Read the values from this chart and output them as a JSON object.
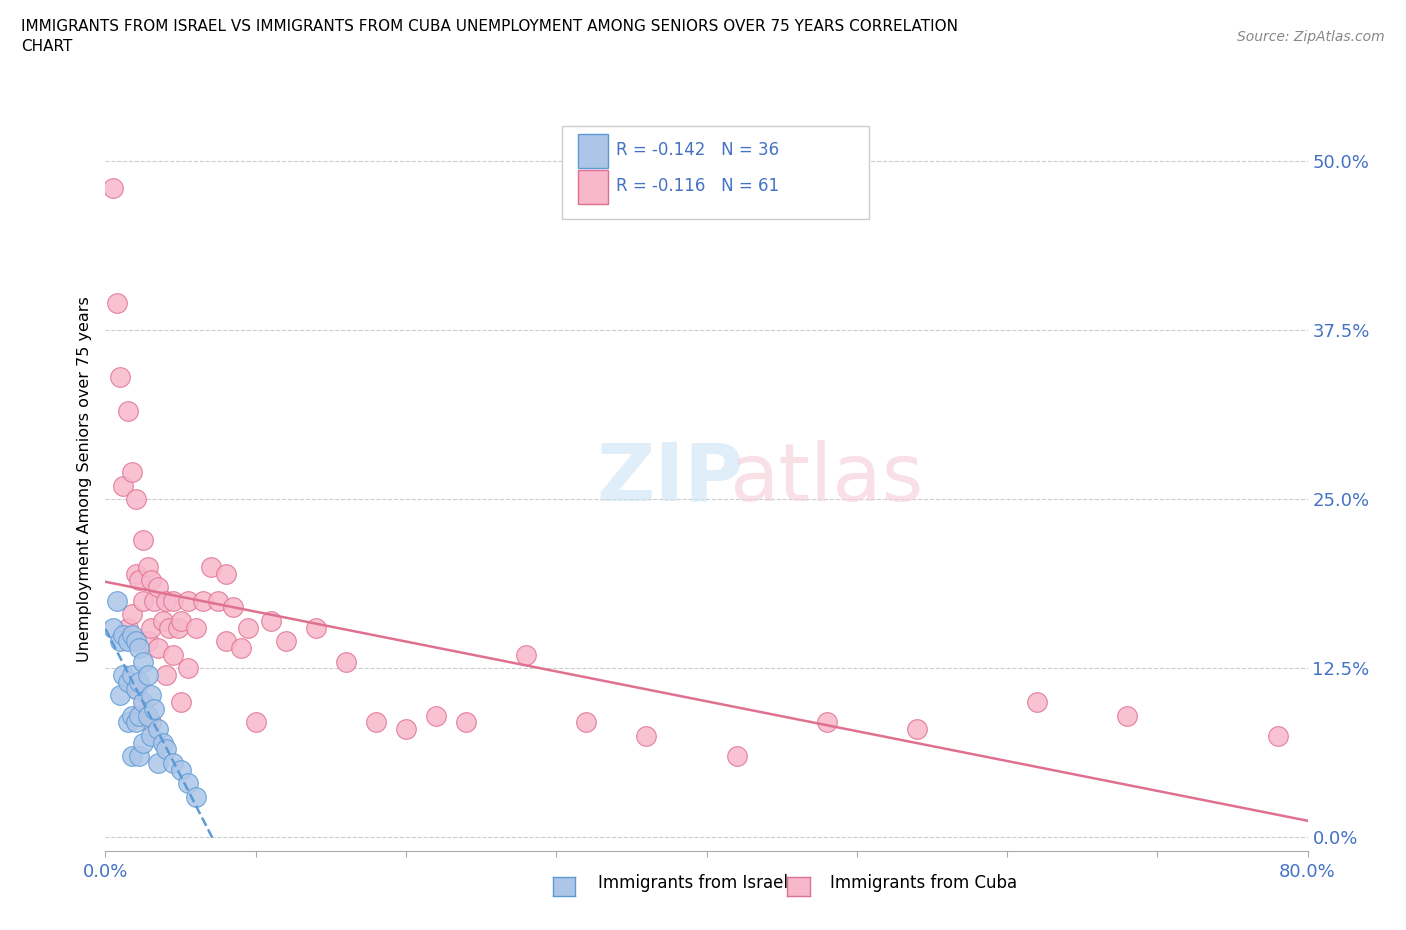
{
  "title_line1": "IMMIGRANTS FROM ISRAEL VS IMMIGRANTS FROM CUBA UNEMPLOYMENT AMONG SENIORS OVER 75 YEARS CORRELATION",
  "title_line2": "CHART",
  "source_text": "Source: ZipAtlas.com",
  "ylabel": "Unemployment Among Seniors over 75 years",
  "yticks_labels": [
    "0.0%",
    "12.5%",
    "25.0%",
    "37.5%",
    "50.0%"
  ],
  "yticks_values": [
    0.0,
    0.125,
    0.25,
    0.375,
    0.5
  ],
  "xlim": [
    0.0,
    0.8
  ],
  "ylim": [
    -0.01,
    0.54
  ],
  "israel_color": "#adc6e8",
  "israel_edge_color": "#5b9bd5",
  "cuba_color": "#f7b8cc",
  "cuba_edge_color": "#e07090",
  "israel_R": -0.142,
  "israel_N": 36,
  "cuba_R": -0.116,
  "cuba_N": 61,
  "israel_x": [
    0.005,
    0.008,
    0.01,
    0.01,
    0.012,
    0.012,
    0.015,
    0.015,
    0.015,
    0.018,
    0.018,
    0.018,
    0.018,
    0.02,
    0.02,
    0.02,
    0.022,
    0.022,
    0.022,
    0.022,
    0.025,
    0.025,
    0.025,
    0.028,
    0.028,
    0.03,
    0.03,
    0.032,
    0.035,
    0.035,
    0.038,
    0.04,
    0.045,
    0.05,
    0.055,
    0.06
  ],
  "israel_y": [
    0.155,
    0.175,
    0.145,
    0.105,
    0.15,
    0.12,
    0.145,
    0.115,
    0.085,
    0.15,
    0.12,
    0.09,
    0.06,
    0.145,
    0.11,
    0.085,
    0.14,
    0.115,
    0.09,
    0.06,
    0.13,
    0.1,
    0.07,
    0.12,
    0.09,
    0.105,
    0.075,
    0.095,
    0.08,
    0.055,
    0.07,
    0.065,
    0.055,
    0.05,
    0.04,
    0.03
  ],
  "cuba_x": [
    0.005,
    0.008,
    0.01,
    0.012,
    0.015,
    0.015,
    0.018,
    0.018,
    0.02,
    0.02,
    0.02,
    0.022,
    0.025,
    0.025,
    0.025,
    0.028,
    0.028,
    0.03,
    0.03,
    0.03,
    0.032,
    0.035,
    0.035,
    0.038,
    0.04,
    0.04,
    0.042,
    0.045,
    0.045,
    0.048,
    0.05,
    0.05,
    0.055,
    0.055,
    0.06,
    0.065,
    0.07,
    0.075,
    0.08,
    0.08,
    0.085,
    0.09,
    0.095,
    0.1,
    0.11,
    0.12,
    0.14,
    0.16,
    0.18,
    0.2,
    0.22,
    0.24,
    0.28,
    0.32,
    0.36,
    0.42,
    0.48,
    0.54,
    0.62,
    0.68,
    0.78
  ],
  "cuba_y": [
    0.48,
    0.395,
    0.34,
    0.26,
    0.315,
    0.155,
    0.27,
    0.165,
    0.25,
    0.195,
    0.11,
    0.19,
    0.22,
    0.175,
    0.095,
    0.2,
    0.145,
    0.19,
    0.155,
    0.085,
    0.175,
    0.185,
    0.14,
    0.16,
    0.175,
    0.12,
    0.155,
    0.175,
    0.135,
    0.155,
    0.16,
    0.1,
    0.175,
    0.125,
    0.155,
    0.175,
    0.2,
    0.175,
    0.195,
    0.145,
    0.17,
    0.14,
    0.155,
    0.085,
    0.16,
    0.145,
    0.155,
    0.13,
    0.085,
    0.08,
    0.09,
    0.085,
    0.135,
    0.085,
    0.075,
    0.06,
    0.085,
    0.08,
    0.1,
    0.09,
    0.075
  ]
}
